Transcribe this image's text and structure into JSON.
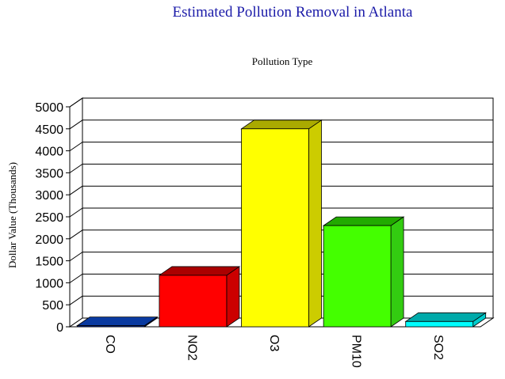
{
  "chart_data": {
    "type": "bar",
    "title": "Estimated Pollution Removal in Atlanta",
    "subtitle": "Pollution Type",
    "ylabel": "Dollar Value (Thousands)",
    "xlabel": "",
    "categories": [
      "CO",
      "NO2",
      "O3",
      "PM10",
      "SO2"
    ],
    "values": [
      25,
      1170,
      4500,
      2300,
      120
    ],
    "ylim": [
      0,
      5000
    ],
    "yticks": [
      "0",
      "500",
      "1000",
      "1500",
      "2000",
      "2500",
      "3000",
      "3500",
      "4000",
      "4500",
      "5000"
    ],
    "colors": {
      "front": [
        "#0a2a99",
        "#ff0000",
        "#ffff00",
        "#44ff00",
        "#00ffff"
      ],
      "top": [
        "#0a3aa0",
        "#aa0000",
        "#aaaa00",
        "#22aa00",
        "#00aaaa"
      ],
      "side": [
        "#0a2277",
        "#cc0000",
        "#cccc00",
        "#33cc11",
        "#00cccc"
      ]
    },
    "grid": true,
    "legend": "none"
  }
}
